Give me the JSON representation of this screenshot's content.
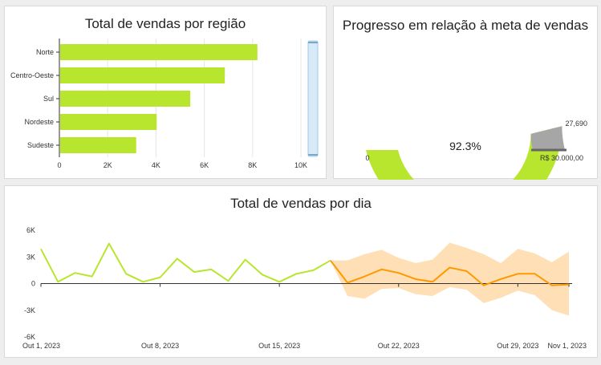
{
  "colors": {
    "primary": "#b8e62e",
    "forecast": "#ff9900",
    "forecast_band": "#ffd9a8",
    "gauge_rest": "#a6a6a6",
    "scroll_track": "#d6eaf8",
    "grid": "#e6e6e6",
    "axis": "#333333"
  },
  "chart_data": [
    {
      "type": "bar",
      "orientation": "horizontal",
      "title": "Total de vendas por região",
      "categories": [
        "Norte",
        "Centro-Oeste",
        "Sul",
        "Nordeste",
        "Sudeste"
      ],
      "values": [
        8200,
        6850,
        5420,
        4030,
        3180
      ],
      "xlim": [
        0,
        10000
      ],
      "x_ticks": [
        0,
        2000,
        4000,
        6000,
        8000,
        10000
      ],
      "x_tick_labels": [
        "0",
        "2K",
        "4K",
        "6K",
        "8K",
        "10K"
      ],
      "grid": true
    },
    {
      "type": "gauge",
      "title": "Progresso em relação à meta de vendas",
      "value": 27690,
      "target": 30000,
      "percent": 0.923,
      "percent_label": "92.3%",
      "value_label": "27,690",
      "target_label": "R$ 30.000,00",
      "min_label": "0"
    },
    {
      "type": "line",
      "title": "Total de vendas por dia",
      "x_labels": [
        "Out 1, 2023",
        "Out 8, 2023",
        "Out 15, 2023",
        "Out 22, 2023",
        "Out 29, 2023",
        "Nov 1, 2023"
      ],
      "x_label_days": [
        1,
        8,
        15,
        22,
        29,
        32
      ],
      "ylim": [
        -6000,
        6000
      ],
      "y_ticks": [
        6000,
        3000,
        0,
        -3000,
        -6000
      ],
      "y_tick_labels": [
        "6K",
        "3K",
        "0",
        "-3K",
        "-6K"
      ],
      "series": [
        {
          "kind": "actual",
          "days": [
            1,
            2,
            3,
            4,
            5,
            6,
            7,
            8,
            9,
            10,
            11,
            12,
            13,
            14,
            15,
            16,
            17,
            18
          ],
          "values": [
            3900,
            200,
            1200,
            800,
            4500,
            1100,
            200,
            700,
            2800,
            1300,
            1600,
            300,
            2700,
            1000,
            200,
            1100,
            1500,
            2600
          ]
        },
        {
          "kind": "forecast",
          "days": [
            18,
            19,
            20,
            21,
            22,
            23,
            24,
            25,
            26,
            27,
            28,
            29,
            30,
            31,
            32
          ],
          "values": [
            2600,
            100,
            800,
            1600,
            1200,
            500,
            200,
            1800,
            1400,
            -200,
            500,
            1100,
            1100,
            -200,
            -100
          ],
          "lower": [
            2600,
            -1400,
            -1700,
            -600,
            -500,
            -1200,
            -1400,
            -400,
            -700,
            -2200,
            -1600,
            -800,
            -1300,
            -3000,
            -3600
          ],
          "upper": [
            2600,
            2600,
            3300,
            3800,
            2900,
            2300,
            2700,
            4600,
            4000,
            3300,
            2300,
            3900,
            3400,
            2400,
            3600
          ]
        }
      ]
    }
  ]
}
